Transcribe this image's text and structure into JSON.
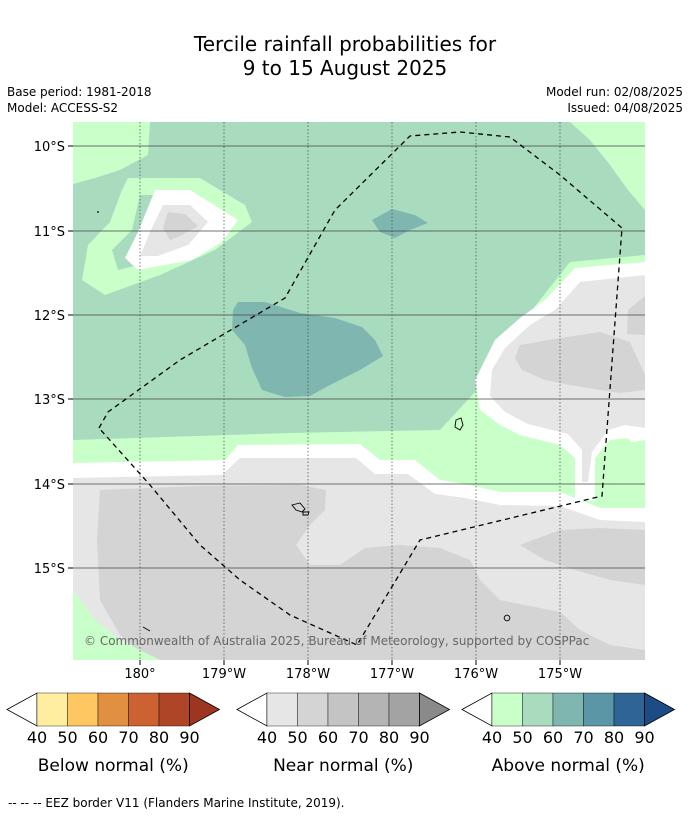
{
  "header": {
    "title_line1": "Tercile rainfall probabilities for",
    "title_line2": "9 to 15 August 2025",
    "base_period": "Base period: 1981-2018",
    "model": "Model: ACCESS-S2",
    "model_run": "Model run: 02/08/2025",
    "issued": "Issued: 04/08/2025"
  },
  "map": {
    "lat_labels": [
      "10°S",
      "11°S",
      "12°S",
      "13°S",
      "14°S",
      "15°S"
    ],
    "lon_labels": [
      "180°",
      "179°W",
      "178°W",
      "177°W",
      "176°W",
      "175°W"
    ],
    "copyright": "© Commonwealth of Australia 2025, Bureau of Meteorology, supported by COSPPac"
  },
  "colorbars": [
    {
      "title": "Below normal (%)",
      "ticks": [
        "40",
        "50",
        "60",
        "70",
        "80",
        "90"
      ],
      "colors": [
        "#ffffff",
        "#ffeea0",
        "#fec762",
        "#e09040",
        "#cc6131",
        "#ae4526",
        "#9e3520"
      ]
    },
    {
      "title": "Near normal (%)",
      "ticks": [
        "40",
        "50",
        "60",
        "70",
        "80",
        "90"
      ],
      "colors": [
        "#ffffff",
        "#e6e6e6",
        "#d4d4d4",
        "#c4c4c4",
        "#b4b4b4",
        "#a3a3a3",
        "#8a8a8a"
      ]
    },
    {
      "title": "Above normal (%)",
      "ticks": [
        "40",
        "50",
        "60",
        "70",
        "80",
        "90"
      ],
      "colors": [
        "#ffffff",
        "#c9ffc9",
        "#a9dbbf",
        "#7fb6b0",
        "#5b96a6",
        "#2f6497",
        "#1c4c86"
      ]
    }
  ],
  "footnote": "--  --  -- EEZ border V11 (Flanders Marine Institute, 2019)."
}
